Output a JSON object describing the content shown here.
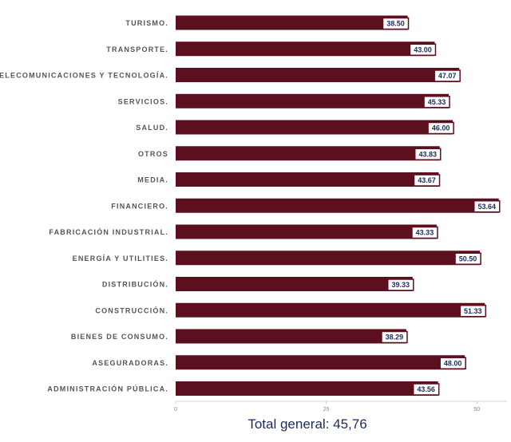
{
  "chart_data": {
    "type": "bar",
    "orientation": "horizontal",
    "categories": [
      "TURISMO.",
      "TRANSPORTE.",
      "TELECOMUNICACIONES Y TECNOLOGÍA.",
      "SERVICIOS.",
      "SALUD.",
      "OTROS",
      "MEDIA.",
      "FINANCIERO.",
      "FABRICACIÓN INDUSTRIAL.",
      "ENERGÍA Y UTILITIES.",
      "DISTRIBUCIÓN.",
      "CONSTRUCCIÓN.",
      "BIENES DE CONSUMO.",
      "ASEGURADORAS.",
      "ADMINISTRACIÓN PÚBLICA."
    ],
    "values": [
      38.5,
      43.0,
      47.07,
      45.33,
      46.0,
      43.83,
      43.67,
      53.64,
      43.33,
      50.5,
      39.33,
      51.33,
      38.29,
      48.0,
      43.56
    ],
    "value_labels": [
      "38.50",
      "43.00",
      "47.07",
      "45.33",
      "46.00",
      "43.83",
      "43.67",
      "53.64",
      "43.33",
      "50.50",
      "39.33",
      "51.33",
      "38.29",
      "48.00",
      "43.56"
    ],
    "x_ticks": [
      0,
      25,
      50
    ],
    "x_tick_labels": [
      "0",
      "25",
      "50"
    ],
    "xlim": [
      0,
      55
    ],
    "bar_color": "#5c0f1e",
    "label_box_border": "#5c0f1e",
    "value_text_color": "#1e2a5a",
    "grid": false,
    "legend": "none"
  },
  "footer": {
    "total_text": "Total general: 45,76"
  }
}
